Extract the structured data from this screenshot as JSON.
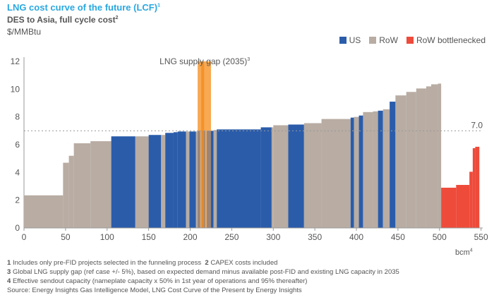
{
  "header": {
    "title": "LNG cost curve of the future (LCF)",
    "title_sup": "1",
    "subtitle": "DES to Asia, full cycle cost",
    "subtitle_sup": "2",
    "unit": "$/MMBtu"
  },
  "legend": [
    {
      "name": "US",
      "color": "#2a5caa"
    },
    {
      "name": "RoW",
      "color": "#b8aca3"
    },
    {
      "name": "RoW bottlenecked",
      "color": "#ee4b3b"
    }
  ],
  "colors": {
    "US": "#2a5caa",
    "RoW": "#b8aca3",
    "RoW bottlenecked": "#ee4b3b",
    "gap": "#f7a54a",
    "gap_line": "#f28c1e"
  },
  "chart_data": {
    "type": "bar",
    "xlabel": "bcm",
    "xlabel_sup": "4",
    "ylabel": "$/MMBtu",
    "xlim": [
      0,
      552
    ],
    "ylim": [
      0,
      12
    ],
    "xticks": [
      0,
      50,
      100,
      150,
      200,
      250,
      300,
      350,
      400,
      450,
      500,
      550
    ],
    "yticks": [
      0,
      2,
      4,
      6,
      8,
      10,
      12
    ],
    "reference_line": {
      "value": 7.0,
      "label": "7.0"
    },
    "supply_gap": {
      "label": "LNG supply gap (2035)",
      "label_sup": "3",
      "x_start": 209,
      "x_end": 225,
      "center": 215
    },
    "segments": [
      {
        "x0": 0,
        "x1": 47,
        "y": 2.35,
        "type": "RoW"
      },
      {
        "x0": 47,
        "x1": 54,
        "y": 4.7,
        "type": "RoW"
      },
      {
        "x0": 54,
        "x1": 60,
        "y": 5.2,
        "type": "RoW"
      },
      {
        "x0": 60,
        "x1": 80,
        "y": 6.1,
        "type": "RoW"
      },
      {
        "x0": 80,
        "x1": 105,
        "y": 6.25,
        "type": "RoW"
      },
      {
        "x0": 105,
        "x1": 134,
        "y": 6.6,
        "type": "US"
      },
      {
        "x0": 134,
        "x1": 150,
        "y": 6.6,
        "type": "RoW"
      },
      {
        "x0": 150,
        "x1": 165,
        "y": 6.7,
        "type": "US"
      },
      {
        "x0": 165,
        "x1": 170,
        "y": 6.7,
        "type": "RoW"
      },
      {
        "x0": 170,
        "x1": 180,
        "y": 6.85,
        "type": "US"
      },
      {
        "x0": 180,
        "x1": 185,
        "y": 6.9,
        "type": "US"
      },
      {
        "x0": 185,
        "x1": 195,
        "y": 6.95,
        "type": "US"
      },
      {
        "x0": 195,
        "x1": 199,
        "y": 6.95,
        "type": "RoW"
      },
      {
        "x0": 199,
        "x1": 207,
        "y": 6.95,
        "type": "US"
      },
      {
        "x0": 207,
        "x1": 209,
        "y": 6.95,
        "type": "RoW"
      },
      {
        "x0": 209,
        "x1": 212,
        "y": 7.0,
        "type": "US"
      },
      {
        "x0": 212,
        "x1": 214,
        "y": 7.0,
        "type": "RoW"
      },
      {
        "x0": 214,
        "x1": 218,
        "y": 7.0,
        "type": "US"
      },
      {
        "x0": 218,
        "x1": 220,
        "y": 7.0,
        "type": "RoW"
      },
      {
        "x0": 220,
        "x1": 228,
        "y": 7.0,
        "type": "US"
      },
      {
        "x0": 228,
        "x1": 232,
        "y": 7.05,
        "type": "RoW"
      },
      {
        "x0": 232,
        "x1": 285,
        "y": 7.1,
        "type": "US"
      },
      {
        "x0": 285,
        "x1": 298,
        "y": 7.25,
        "type": "US"
      },
      {
        "x0": 298,
        "x1": 300,
        "y": 7.25,
        "type": "RoW"
      },
      {
        "x0": 300,
        "x1": 318,
        "y": 7.4,
        "type": "RoW"
      },
      {
        "x0": 318,
        "x1": 337,
        "y": 7.45,
        "type": "US"
      },
      {
        "x0": 337,
        "x1": 358,
        "y": 7.55,
        "type": "RoW"
      },
      {
        "x0": 358,
        "x1": 393,
        "y": 7.85,
        "type": "RoW"
      },
      {
        "x0": 393,
        "x1": 397,
        "y": 7.95,
        "type": "US"
      },
      {
        "x0": 397,
        "x1": 403,
        "y": 8.0,
        "type": "RoW"
      },
      {
        "x0": 403,
        "x1": 408,
        "y": 8.1,
        "type": "US"
      },
      {
        "x0": 408,
        "x1": 420,
        "y": 8.35,
        "type": "RoW"
      },
      {
        "x0": 420,
        "x1": 426,
        "y": 8.4,
        "type": "RoW"
      },
      {
        "x0": 426,
        "x1": 432,
        "y": 8.45,
        "type": "US"
      },
      {
        "x0": 432,
        "x1": 440,
        "y": 8.55,
        "type": "RoW"
      },
      {
        "x0": 440,
        "x1": 447,
        "y": 9.1,
        "type": "US"
      },
      {
        "x0": 447,
        "x1": 460,
        "y": 9.55,
        "type": "RoW"
      },
      {
        "x0": 460,
        "x1": 472,
        "y": 9.8,
        "type": "RoW"
      },
      {
        "x0": 472,
        "x1": 484,
        "y": 10.05,
        "type": "RoW"
      },
      {
        "x0": 484,
        "x1": 490,
        "y": 10.2,
        "type": "RoW"
      },
      {
        "x0": 490,
        "x1": 498,
        "y": 10.35,
        "type": "RoW"
      },
      {
        "x0": 498,
        "x1": 502,
        "y": 10.4,
        "type": "RoW"
      },
      {
        "x0": 502,
        "x1": 520,
        "y": 2.9,
        "type": "RoW bottlenecked"
      },
      {
        "x0": 520,
        "x1": 536,
        "y": 3.1,
        "type": "RoW bottlenecked"
      },
      {
        "x0": 536,
        "x1": 540,
        "y": 4.05,
        "type": "RoW bottlenecked"
      },
      {
        "x0": 540,
        "x1": 543,
        "y": 5.75,
        "type": "RoW bottlenecked"
      },
      {
        "x0": 543,
        "x1": 548,
        "y": 5.85,
        "type": "RoW bottlenecked"
      }
    ]
  },
  "footnotes": [
    {
      "num": "1",
      "text": "Includes only pre-FID projects selected in the funneling process",
      "num2": "2",
      "text2": "CAPEX costs included"
    },
    {
      "num": "3",
      "text": "Global LNG supply gap (ref case +/- 5%), based on expected demand minus available post-FID and existing LNG capacity in 2035"
    },
    {
      "num": "4",
      "text": "Effective sendout capacity (nameplate capacity x 50% in 1st year of operations and 95% thereafter)"
    }
  ],
  "source": "Source: Energy Insights Gas Intelligence Model, LNG Cost Curve of the Present by Energy Insights"
}
